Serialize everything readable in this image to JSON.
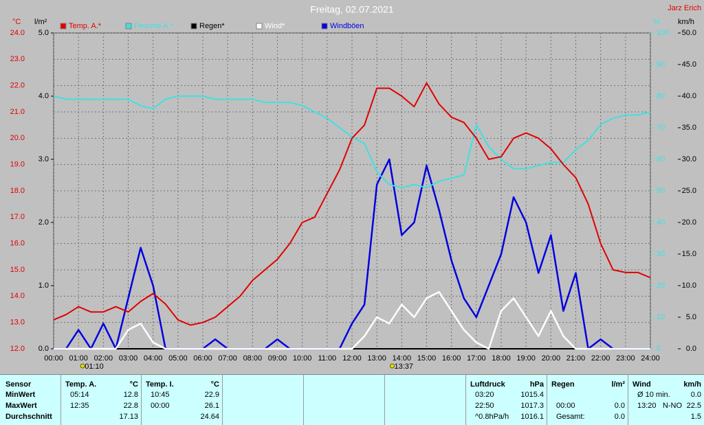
{
  "chart_data": {
    "type": "line",
    "title": "Freitag, 02.07.2021",
    "author": "Jarz Erich",
    "y_label": "°C",
    "y2_label": "l/m²",
    "y3_label": "%",
    "y4_label": "km/h",
    "x": [
      0,
      0.5,
      1,
      1.5,
      2,
      2.5,
      3,
      3.5,
      4,
      4.5,
      5,
      5.5,
      6,
      6.5,
      7,
      7.5,
      8,
      8.5,
      9,
      9.5,
      10,
      10.5,
      11,
      11.5,
      12,
      12.5,
      13,
      13.5,
      14,
      14.5,
      15,
      15.5,
      16,
      16.5,
      17,
      17.5,
      18,
      18.5,
      19,
      19.5,
      20,
      20.5,
      21,
      21.5,
      22,
      22.5,
      23,
      23.5,
      24
    ],
    "xlim": [
      0,
      24
    ],
    "xticks": [
      {
        "value": 0,
        "label": "00:00"
      },
      {
        "value": 1,
        "label": "01:00"
      },
      {
        "value": 2,
        "label": "02:00"
      },
      {
        "value": 3,
        "label": "03:00"
      },
      {
        "value": 4,
        "label": "04:00"
      },
      {
        "value": 5,
        "label": "05:00"
      },
      {
        "value": 6,
        "label": "06:00"
      },
      {
        "value": 7,
        "label": "07:00"
      },
      {
        "value": 8,
        "label": "08:00"
      },
      {
        "value": 9,
        "label": "09:00"
      },
      {
        "value": 10,
        "label": "10:00"
      },
      {
        "value": 11,
        "label": "11:00"
      },
      {
        "value": 12,
        "label": "12:00"
      },
      {
        "value": 13,
        "label": "13:00"
      },
      {
        "value": 14,
        "label": "14:00"
      },
      {
        "value": 15,
        "label": "15:00"
      },
      {
        "value": 16,
        "label": "16:00"
      },
      {
        "value": 17,
        "label": "17:00"
      },
      {
        "value": 18,
        "label": "18:00"
      },
      {
        "value": 19,
        "label": "19:00"
      },
      {
        "value": 20,
        "label": "20:00"
      },
      {
        "value": 21,
        "label": "21:00"
      },
      {
        "value": 22,
        "label": "22:00"
      },
      {
        "value": 23,
        "label": "23:00"
      },
      {
        "value": 24,
        "label": "24:00"
      }
    ],
    "ylim": [
      12,
      24
    ],
    "yticks": [
      {
        "value": 12,
        "label": "12.0"
      },
      {
        "value": 13,
        "label": "13.0"
      },
      {
        "value": 14,
        "label": "14.0"
      },
      {
        "value": 15,
        "label": "15.0"
      },
      {
        "value": 16,
        "label": "16.0"
      },
      {
        "value": 17,
        "label": "17.0"
      },
      {
        "value": 18,
        "label": "18.0"
      },
      {
        "value": 19,
        "label": "19.0"
      },
      {
        "value": 20,
        "label": "20.0"
      },
      {
        "value": 21,
        "label": "21.0"
      },
      {
        "value": 22,
        "label": "22.0"
      },
      {
        "value": 23,
        "label": "23.0"
      },
      {
        "value": 24,
        "label": "24.0"
      }
    ],
    "y2lim": [
      0,
      5
    ],
    "y2ticks": [
      {
        "value": 0,
        "label": "0.0"
      },
      {
        "value": 1,
        "label": "1.0"
      },
      {
        "value": 2,
        "label": "2.0"
      },
      {
        "value": 3,
        "label": "3.0"
      },
      {
        "value": 4,
        "label": "4.0"
      },
      {
        "value": 5,
        "label": "5.0"
      }
    ],
    "y3lim": [
      0,
      100
    ],
    "y3ticks": [
      0,
      10,
      20,
      30,
      40,
      50,
      60,
      70,
      80,
      90,
      100
    ],
    "y4lim": [
      0,
      50
    ],
    "y4ticks": [
      {
        "value": 0,
        "label": "0.0"
      },
      {
        "value": 5,
        "label": "5.0"
      },
      {
        "value": 10,
        "label": "10.0"
      },
      {
        "value": 15,
        "label": "15.0"
      },
      {
        "value": 20,
        "label": "20.0"
      },
      {
        "value": 25,
        "label": "25.0"
      },
      {
        "value": 30,
        "label": "30.0"
      },
      {
        "value": 35,
        "label": "35.0"
      },
      {
        "value": 40,
        "label": "40.0"
      },
      {
        "value": 45,
        "label": "45.0"
      },
      {
        "value": 50,
        "label": "50.0"
      }
    ],
    "grid": true,
    "series": [
      {
        "name": "Temp. A.*",
        "color": "#e00000",
        "axis": "y",
        "values": [
          13.1,
          13.3,
          13.6,
          13.4,
          13.4,
          13.6,
          13.4,
          13.8,
          14.1,
          13.7,
          13.1,
          12.9,
          13.0,
          13.2,
          13.6,
          14.0,
          14.6,
          15.0,
          15.4,
          16.0,
          16.8,
          17.0,
          17.9,
          18.8,
          20.0,
          20.5,
          21.9,
          21.9,
          21.6,
          21.2,
          22.1,
          21.3,
          20.8,
          20.6,
          20.0,
          19.2,
          19.3,
          20.0,
          20.2,
          20.0,
          19.6,
          19.0,
          18.5,
          17.5,
          16.0,
          15.0,
          14.9,
          14.9,
          14.7
        ]
      },
      {
        "name": "Feuchte A.*",
        "color": "#40e0e0",
        "axis": "y3",
        "values": [
          80,
          79,
          79,
          79,
          79,
          79,
          79,
          77,
          76,
          79,
          80,
          80,
          80,
          79,
          79,
          79,
          79,
          78,
          78,
          78,
          77,
          75,
          73,
          70,
          67,
          65,
          56,
          52,
          51,
          52,
          51,
          53,
          54,
          55,
          71,
          64,
          60,
          57,
          57,
          58,
          59,
          59,
          63,
          66,
          71,
          73,
          74,
          74,
          75
        ]
      },
      {
        "name": "Regen*",
        "color": "#000000",
        "axis": "y2",
        "values": [
          0,
          0,
          0,
          0,
          0,
          0,
          0,
          0,
          0,
          0,
          0,
          0,
          0,
          0,
          0,
          0,
          0,
          0,
          0,
          0,
          0,
          0,
          0,
          0,
          0,
          0,
          0,
          0,
          0,
          0,
          0,
          0,
          0,
          0,
          0,
          0,
          0,
          0,
          0,
          0,
          0,
          0,
          0,
          0,
          0,
          0,
          0,
          0,
          0
        ]
      },
      {
        "name": "Wind*",
        "color": "#ffffff",
        "axis": "y4",
        "values": [
          0,
          0,
          0,
          0,
          0,
          0,
          3,
          4,
          1,
          0,
          0,
          0,
          0,
          0,
          0,
          0,
          0,
          0,
          0,
          0,
          0,
          0,
          0,
          0,
          0,
          2,
          5,
          4,
          7,
          5,
          8,
          9,
          6,
          3,
          1,
          0,
          6,
          8,
          5,
          2,
          6,
          2,
          0,
          0,
          0,
          0,
          0,
          0,
          0
        ]
      },
      {
        "name": "Windböen",
        "color": "#0000e0",
        "axis": "y4",
        "values": [
          0,
          0,
          3,
          0,
          4,
          0,
          8,
          16,
          10,
          0,
          0,
          0,
          0,
          1.5,
          0,
          0,
          0,
          0,
          1.5,
          0,
          0,
          0,
          0,
          0,
          4,
          7,
          26,
          30,
          18,
          20,
          29,
          22,
          14,
          8,
          5,
          10,
          15,
          24,
          20,
          12,
          18,
          6,
          12,
          0,
          1.5,
          0,
          0,
          0,
          0
        ]
      }
    ],
    "annotations": [
      {
        "x": 1.167,
        "label": "01:10"
      },
      {
        "x": 13.617,
        "label": "13:37"
      }
    ]
  },
  "table": {
    "labels": [
      "Sensor",
      "MinWert",
      "MaxWert",
      "Durchschnitt"
    ],
    "blocks": [
      {
        "title": "Temp. A.",
        "unit": "°C",
        "rows": [
          [
            "05:14",
            "12.8"
          ],
          [
            "12:35",
            "22.8"
          ],
          [
            null,
            "17.13"
          ]
        ]
      },
      {
        "title": "Temp. I.",
        "unit": "°C",
        "rows": [
          [
            "10:45",
            "22.9"
          ],
          [
            "00:00",
            "26.1"
          ],
          [
            null,
            "24.64"
          ]
        ]
      },
      {
        "title": "Luftdruck",
        "unit": "hPa",
        "rows": [
          [
            "03:20",
            "1015.4"
          ],
          [
            "22:50",
            "1017.3"
          ],
          [
            "^0.8hPa/h",
            "1016.1"
          ]
        ]
      },
      {
        "title": "Regen",
        "unit": "l/m²",
        "rows": [
          [
            null,
            null
          ],
          [
            "00:00",
            "0.0"
          ],
          [
            "Gesamt:",
            "0.0"
          ]
        ]
      },
      {
        "title": "Wind",
        "unit": "km/h",
        "rows": [
          [
            "Ø 10 min.",
            "0.0"
          ],
          [
            "13:20",
            "N-NO",
            "22.5"
          ],
          [
            null,
            "1.5"
          ]
        ]
      }
    ]
  }
}
